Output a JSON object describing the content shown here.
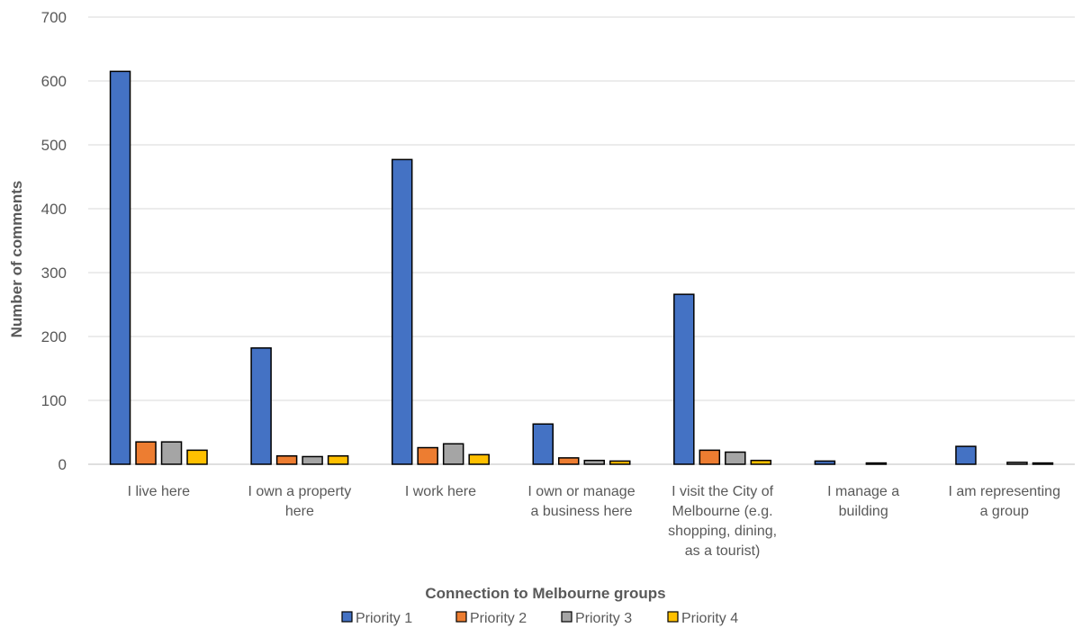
{
  "chart_data": {
    "type": "bar",
    "title": "",
    "xlabel": "Connection to Melbourne groups",
    "ylabel": "Number of comments",
    "ylim": [
      0,
      700
    ],
    "yticks": [
      0,
      100,
      200,
      300,
      400,
      500,
      600,
      700
    ],
    "grid": true,
    "legend_position": "bottom",
    "categories": [
      [
        "I live here"
      ],
      [
        "I own a property",
        "here"
      ],
      [
        "I work here"
      ],
      [
        "I own or manage",
        "a business here"
      ],
      [
        "I visit the City of",
        "Melbourne (e.g.",
        "shopping, dining,",
        "as a tourist)"
      ],
      [
        "I manage a",
        "building"
      ],
      [
        "I am representing",
        "a group"
      ]
    ],
    "series": [
      {
        "name": "Priority 1",
        "color": "#4472c4",
        "values": [
          615,
          182,
          477,
          63,
          266,
          5,
          28
        ]
      },
      {
        "name": "Priority 2",
        "color": "#ed7d31",
        "values": [
          35,
          13,
          26,
          10,
          22,
          0,
          0
        ]
      },
      {
        "name": "Priority 3",
        "color": "#a5a5a5",
        "values": [
          35,
          12,
          32,
          6,
          19,
          2,
          3
        ]
      },
      {
        "name": "Priority 4",
        "color": "#ffc000",
        "values": [
          22,
          13,
          15,
          5,
          6,
          0,
          2
        ]
      }
    ]
  }
}
